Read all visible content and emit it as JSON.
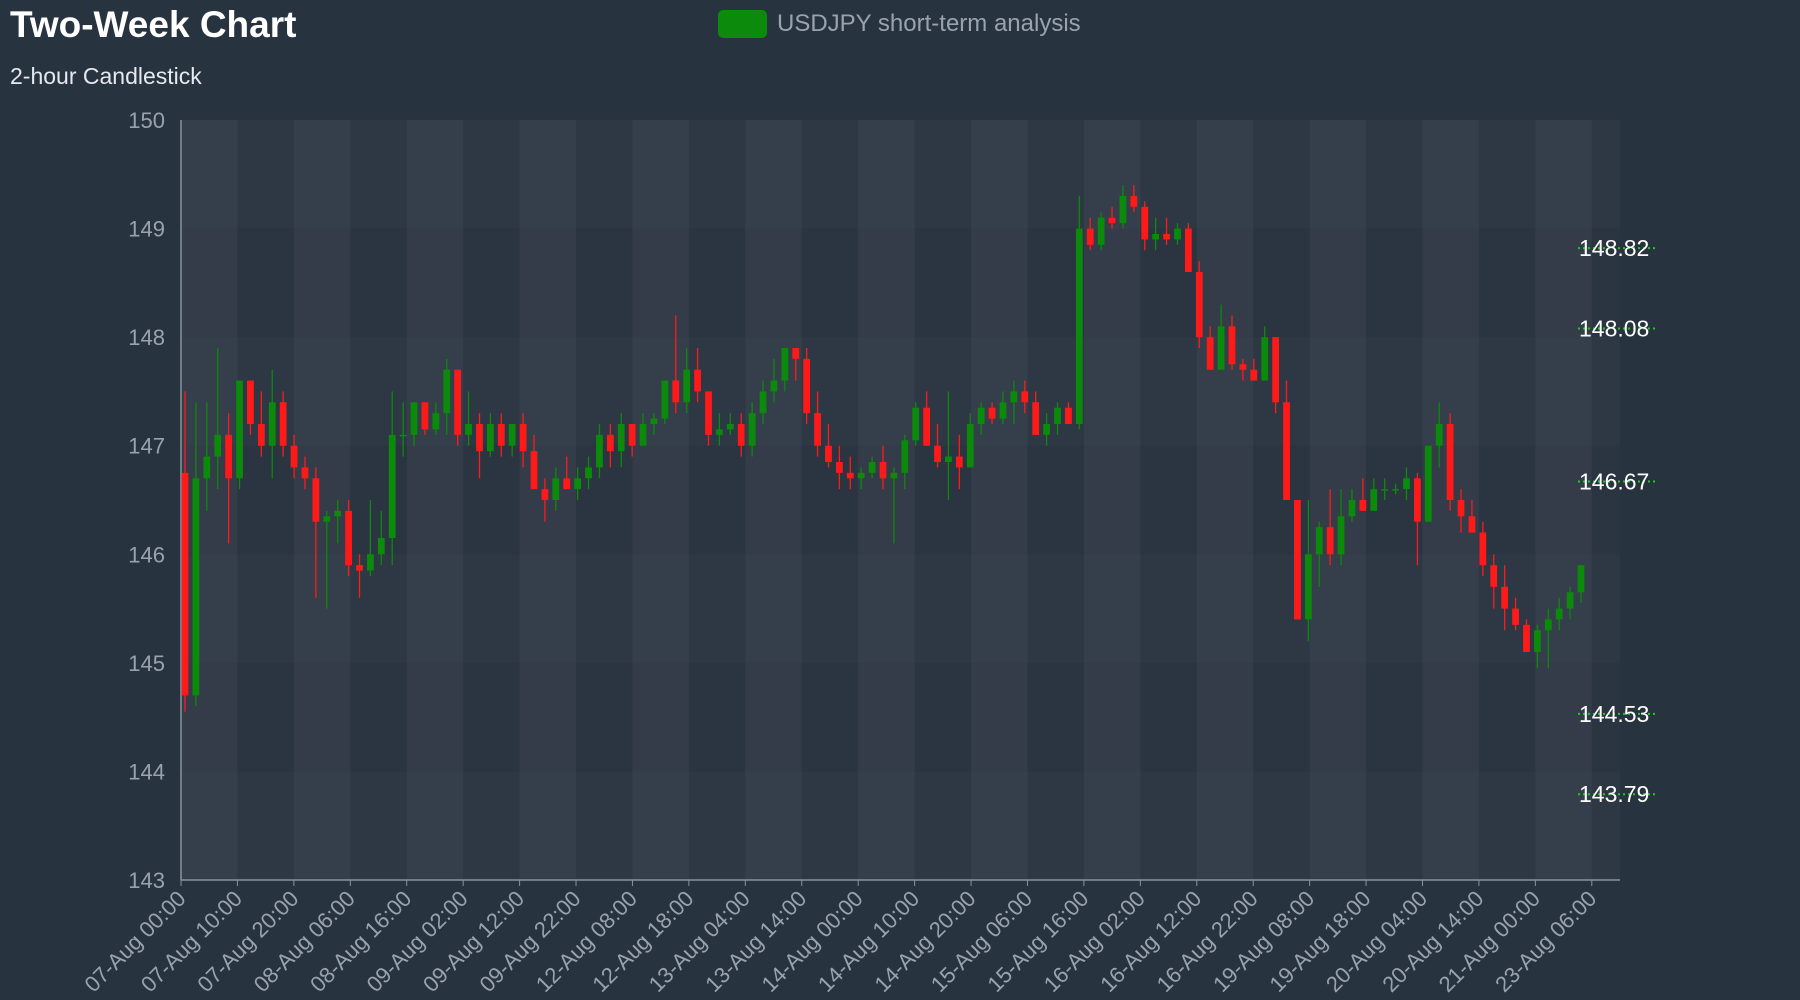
{
  "chart_data": {
    "type": "candlestick",
    "title": "Two-Week Chart",
    "subtitle": "2-hour Candlestick",
    "legend": {
      "label": "USDJPY short-term analysis",
      "position": "top-center"
    },
    "ylim": [
      143,
      150
    ],
    "y_ticks": [
      "150",
      "149",
      "148",
      "147",
      "146",
      "145",
      "144",
      "143"
    ],
    "x_tick_labels": [
      "07-Aug 00:00",
      "07-Aug 10:00",
      "07-Aug 20:00",
      "08-Aug 06:00",
      "08-Aug 16:00",
      "09-Aug 02:00",
      "09-Aug 12:00",
      "09-Aug 22:00",
      "12-Aug 08:00",
      "12-Aug 18:00",
      "13-Aug 04:00",
      "13-Aug 14:00",
      "14-Aug 00:00",
      "14-Aug 10:00",
      "14-Aug 20:00",
      "15-Aug 06:00",
      "15-Aug 16:00",
      "16-Aug 02:00",
      "16-Aug 12:00",
      "16-Aug 22:00",
      "19-Aug 08:00",
      "19-Aug 18:00",
      "20-Aug 04:00",
      "20-Aug 14:00",
      "21-Aug 00:00",
      "23-Aug 06:00"
    ],
    "grid": true,
    "level_lines": [
      "148.82",
      "148.08",
      "146.67",
      "144.53",
      "143.79"
    ],
    "colors": {
      "up": "#0b8a0b",
      "down": "#ff1a1a",
      "levels": "#22c722",
      "background": "#283340",
      "plot_band_light": "#333e4b",
      "plot_band_dark": "#2d3844"
    },
    "candles": [
      [
        146.75,
        147.5,
        144.55,
        144.7
      ],
      [
        144.7,
        147.4,
        144.6,
        146.7
      ],
      [
        146.7,
        147.4,
        146.4,
        146.9
      ],
      [
        146.9,
        147.9,
        146.6,
        147.1
      ],
      [
        147.1,
        147.3,
        146.1,
        146.7
      ],
      [
        146.7,
        147.6,
        146.6,
        147.6
      ],
      [
        147.6,
        147.6,
        147.1,
        147.2
      ],
      [
        147.2,
        147.5,
        146.9,
        147.0
      ],
      [
        147.0,
        147.7,
        146.7,
        147.4
      ],
      [
        147.4,
        147.5,
        146.9,
        147.0
      ],
      [
        147.0,
        147.1,
        146.7,
        146.8
      ],
      [
        146.8,
        146.9,
        146.6,
        146.7
      ],
      [
        146.7,
        146.8,
        145.6,
        146.3
      ],
      [
        146.3,
        146.4,
        145.5,
        146.35
      ],
      [
        146.35,
        146.5,
        146.1,
        146.4
      ],
      [
        146.4,
        146.5,
        145.8,
        145.9
      ],
      [
        145.9,
        146.0,
        145.6,
        145.85
      ],
      [
        145.85,
        146.5,
        145.8,
        146.0
      ],
      [
        146.0,
        146.4,
        145.9,
        146.15
      ],
      [
        146.15,
        147.5,
        145.9,
        147.1
      ],
      [
        147.1,
        147.4,
        146.9,
        147.1
      ],
      [
        147.1,
        147.4,
        147.0,
        147.4
      ],
      [
        147.4,
        147.4,
        147.1,
        147.15
      ],
      [
        147.15,
        147.4,
        147.1,
        147.3
      ],
      [
        147.3,
        147.8,
        147.1,
        147.7
      ],
      [
        147.7,
        147.7,
        147.0,
        147.1
      ],
      [
        147.1,
        147.5,
        147.0,
        147.2
      ],
      [
        147.2,
        147.3,
        146.7,
        146.95
      ],
      [
        146.95,
        147.3,
        146.9,
        147.2
      ],
      [
        147.2,
        147.3,
        146.9,
        147.0
      ],
      [
        147.0,
        147.2,
        146.9,
        147.2
      ],
      [
        147.2,
        147.3,
        146.8,
        146.95
      ],
      [
        146.95,
        147.1,
        146.6,
        146.6
      ],
      [
        146.6,
        146.7,
        146.3,
        146.5
      ],
      [
        146.5,
        146.8,
        146.4,
        146.7
      ],
      [
        146.7,
        146.9,
        146.6,
        146.6
      ],
      [
        146.6,
        146.8,
        146.5,
        146.7
      ],
      [
        146.7,
        146.9,
        146.6,
        146.8
      ],
      [
        146.8,
        147.2,
        146.7,
        147.1
      ],
      [
        147.1,
        147.2,
        146.8,
        146.95
      ],
      [
        146.95,
        147.3,
        146.8,
        147.2
      ],
      [
        147.2,
        147.2,
        146.9,
        147.0
      ],
      [
        147.0,
        147.3,
        147.0,
        147.2
      ],
      [
        147.2,
        147.3,
        147.1,
        147.25
      ],
      [
        147.25,
        147.6,
        147.2,
        147.6
      ],
      [
        147.6,
        148.2,
        147.3,
        147.4
      ],
      [
        147.4,
        147.9,
        147.3,
        147.7
      ],
      [
        147.7,
        147.9,
        147.4,
        147.5
      ],
      [
        147.5,
        147.5,
        147.0,
        147.1
      ],
      [
        147.1,
        147.3,
        147.0,
        147.15
      ],
      [
        147.15,
        147.3,
        147.1,
        147.2
      ],
      [
        147.2,
        147.3,
        146.9,
        147.0
      ],
      [
        147.0,
        147.4,
        146.9,
        147.3
      ],
      [
        147.3,
        147.6,
        147.2,
        147.5
      ],
      [
        147.5,
        147.8,
        147.4,
        147.6
      ],
      [
        147.6,
        147.9,
        147.5,
        147.9
      ],
      [
        147.9,
        147.9,
        147.6,
        147.8
      ],
      [
        147.8,
        147.9,
        147.2,
        147.3
      ],
      [
        147.3,
        147.5,
        146.9,
        147.0
      ],
      [
        147.0,
        147.2,
        146.8,
        146.85
      ],
      [
        146.85,
        147.0,
        146.6,
        146.75
      ],
      [
        146.75,
        146.9,
        146.6,
        146.7
      ],
      [
        146.7,
        146.8,
        146.6,
        146.75
      ],
      [
        146.75,
        146.9,
        146.7,
        146.85
      ],
      [
        146.85,
        147.0,
        146.6,
        146.7
      ],
      [
        146.7,
        146.8,
        146.1,
        146.75
      ],
      [
        146.75,
        147.1,
        146.6,
        147.05
      ],
      [
        147.05,
        147.4,
        147.0,
        147.35
      ],
      [
        147.35,
        147.5,
        147.0,
        147.0
      ],
      [
        147.0,
        147.2,
        146.8,
        146.85
      ],
      [
        146.85,
        147.5,
        146.5,
        146.9
      ],
      [
        146.9,
        147.1,
        146.6,
        146.8
      ],
      [
        146.8,
        147.3,
        146.8,
        147.2
      ],
      [
        147.2,
        147.4,
        147.1,
        147.35
      ],
      [
        147.35,
        147.4,
        147.2,
        147.25
      ],
      [
        147.25,
        147.5,
        147.2,
        147.4
      ],
      [
        147.4,
        147.6,
        147.2,
        147.5
      ],
      [
        147.5,
        147.6,
        147.3,
        147.4
      ],
      [
        147.4,
        147.5,
        147.1,
        147.1
      ],
      [
        147.1,
        147.3,
        147.0,
        147.2
      ],
      [
        147.2,
        147.4,
        147.1,
        147.35
      ],
      [
        147.35,
        147.4,
        147.2,
        147.2
      ],
      [
        147.2,
        149.3,
        147.15,
        149.0
      ],
      [
        149.0,
        149.1,
        148.8,
        148.85
      ],
      [
        148.85,
        149.15,
        148.8,
        149.1
      ],
      [
        149.1,
        149.2,
        149.0,
        149.05
      ],
      [
        149.05,
        149.4,
        149.0,
        149.3
      ],
      [
        149.3,
        149.4,
        149.15,
        149.2
      ],
      [
        149.2,
        149.25,
        148.8,
        148.9
      ],
      [
        148.9,
        149.1,
        148.8,
        148.95
      ],
      [
        148.95,
        149.1,
        148.85,
        148.9
      ],
      [
        148.9,
        149.05,
        148.85,
        149.0
      ],
      [
        149.0,
        149.05,
        148.6,
        148.6
      ],
      [
        148.6,
        148.7,
        147.9,
        148.0
      ],
      [
        148.0,
        148.1,
        147.7,
        147.7
      ],
      [
        147.7,
        148.3,
        147.7,
        148.1
      ],
      [
        148.1,
        148.2,
        147.7,
        147.75
      ],
      [
        147.75,
        147.8,
        147.6,
        147.7
      ],
      [
        147.7,
        147.8,
        147.6,
        147.6
      ],
      [
        147.6,
        148.1,
        147.6,
        148.0
      ],
      [
        148.0,
        148.0,
        147.3,
        147.4
      ],
      [
        147.4,
        147.6,
        146.5,
        146.5
      ],
      [
        146.5,
        146.5,
        145.4,
        145.4
      ],
      [
        145.4,
        146.5,
        145.2,
        146.0
      ],
      [
        146.0,
        146.3,
        145.7,
        146.25
      ],
      [
        146.25,
        146.6,
        145.9,
        146.0
      ],
      [
        146.0,
        146.6,
        145.9,
        146.35
      ],
      [
        146.35,
        146.6,
        146.3,
        146.5
      ],
      [
        146.5,
        146.7,
        146.4,
        146.4
      ],
      [
        146.4,
        146.7,
        146.4,
        146.6
      ],
      [
        146.6,
        146.7,
        146.5,
        146.6
      ],
      [
        146.6,
        146.65,
        146.55,
        146.6
      ],
      [
        146.6,
        146.8,
        146.5,
        146.7
      ],
      [
        146.7,
        146.75,
        145.9,
        146.3
      ],
      [
        146.3,
        147.0,
        146.3,
        147.0
      ],
      [
        147.0,
        147.4,
        146.8,
        147.2
      ],
      [
        147.2,
        147.3,
        146.4,
        146.5
      ],
      [
        146.5,
        146.6,
        146.2,
        146.35
      ],
      [
        146.35,
        146.5,
        146.2,
        146.2
      ],
      [
        146.2,
        146.3,
        145.8,
        145.9
      ],
      [
        145.9,
        146.0,
        145.5,
        145.7
      ],
      [
        145.7,
        145.9,
        145.3,
        145.5
      ],
      [
        145.5,
        145.6,
        145.3,
        145.35
      ],
      [
        145.35,
        145.4,
        145.1,
        145.1
      ],
      [
        145.1,
        145.35,
        144.95,
        145.3
      ],
      [
        145.3,
        145.5,
        144.95,
        145.4
      ],
      [
        145.4,
        145.6,
        145.3,
        145.5
      ],
      [
        145.5,
        145.7,
        145.4,
        145.65
      ],
      [
        145.65,
        145.9,
        145.55,
        145.9
      ]
    ]
  }
}
